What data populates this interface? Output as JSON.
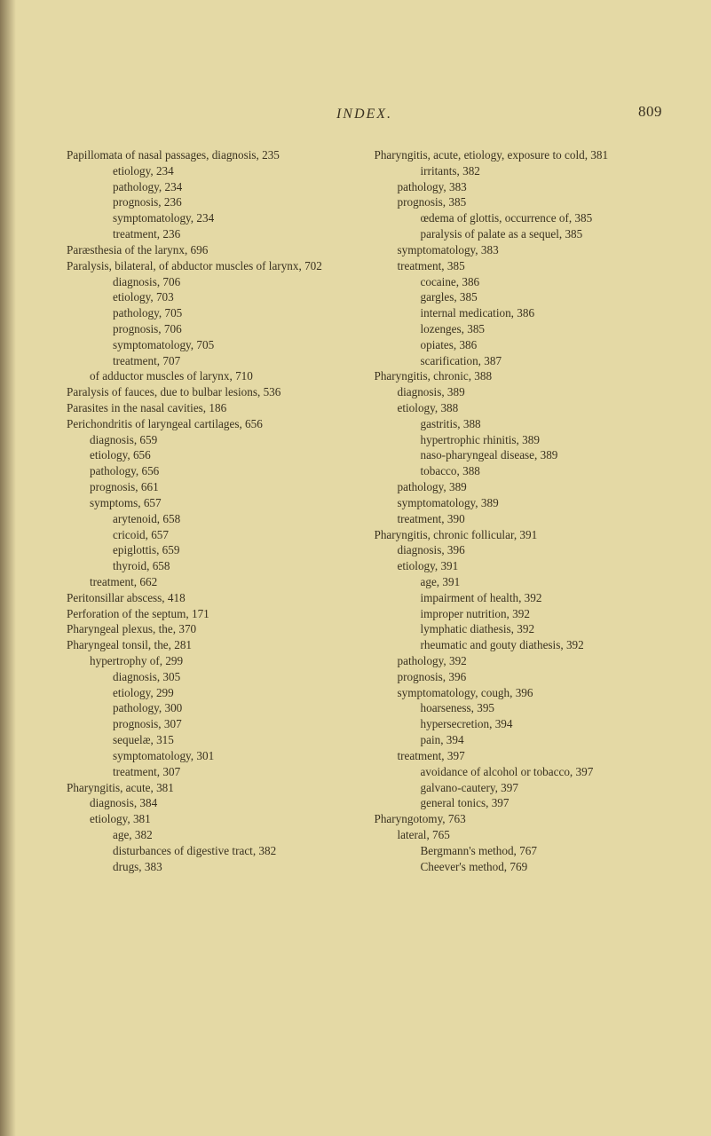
{
  "header": {
    "title": "INDEX.",
    "pageno": "809"
  },
  "colors": {
    "bg": "#e4d9a5",
    "text": "#3a3220"
  },
  "left": [
    {
      "i": 0,
      "t": "Papillomata of nasal passages, diagnosis, 235"
    },
    {
      "i": 2,
      "t": "etiology, 234"
    },
    {
      "i": 2,
      "t": "pathology, 234"
    },
    {
      "i": 2,
      "t": "prognosis, 236"
    },
    {
      "i": 2,
      "t": "symptomatology, 234"
    },
    {
      "i": 2,
      "t": "treatment, 236"
    },
    {
      "i": 0,
      "t": "Paræsthesia of the larynx, 696"
    },
    {
      "i": 0,
      "t": "Paralysis, bilateral, of abductor muscles of larynx, 702"
    },
    {
      "i": 2,
      "t": "diagnosis, 706"
    },
    {
      "i": 2,
      "t": "etiology, 703"
    },
    {
      "i": 2,
      "t": "pathology, 705"
    },
    {
      "i": 2,
      "t": "prognosis, 706"
    },
    {
      "i": 2,
      "t": "symptomatology, 705"
    },
    {
      "i": 2,
      "t": "treatment, 707"
    },
    {
      "i": 1,
      "t": "of adductor muscles of larynx, 710"
    },
    {
      "i": 0,
      "t": "Paralysis of fauces, due to bulbar lesions, 536"
    },
    {
      "i": 0,
      "t": "Parasites in the nasal cavities, 186"
    },
    {
      "i": 0,
      "t": "Perichondritis of laryngeal cartilages, 656"
    },
    {
      "i": 1,
      "t": "diagnosis, 659"
    },
    {
      "i": 1,
      "t": "etiology, 656"
    },
    {
      "i": 1,
      "t": "pathology, 656"
    },
    {
      "i": 1,
      "t": "prognosis, 661"
    },
    {
      "i": 1,
      "t": "symptoms, 657"
    },
    {
      "i": 2,
      "t": "arytenoid, 658"
    },
    {
      "i": 2,
      "t": "cricoid, 657"
    },
    {
      "i": 2,
      "t": "epiglottis, 659"
    },
    {
      "i": 2,
      "t": "thyroid, 658"
    },
    {
      "i": 1,
      "t": "treatment, 662"
    },
    {
      "i": 0,
      "t": "Peritonsillar abscess, 418"
    },
    {
      "i": 0,
      "t": "Perforation of the septum, 171"
    },
    {
      "i": 0,
      "t": "Pharyngeal plexus, the, 370"
    },
    {
      "i": 0,
      "t": "Pharyngeal tonsil, the, 281"
    },
    {
      "i": 1,
      "t": "hypertrophy of, 299"
    },
    {
      "i": 2,
      "t": "diagnosis, 305"
    },
    {
      "i": 2,
      "t": "etiology, 299"
    },
    {
      "i": 2,
      "t": "pathology, 300"
    },
    {
      "i": 2,
      "t": "prognosis, 307"
    },
    {
      "i": 2,
      "t": "sequelæ, 315"
    },
    {
      "i": 2,
      "t": "symptomatology, 301"
    },
    {
      "i": 2,
      "t": "treatment, 307"
    },
    {
      "i": 0,
      "t": "Pharyngitis, acute, 381"
    },
    {
      "i": 1,
      "t": "diagnosis, 384"
    },
    {
      "i": 1,
      "t": "etiology, 381"
    },
    {
      "i": 2,
      "t": "age, 382"
    },
    {
      "i": 2,
      "t": "disturbances of digestive tract, 382"
    },
    {
      "i": 2,
      "t": "drugs, 383"
    }
  ],
  "right": [
    {
      "i": 0,
      "t": "Pharyngitis, acute, etiology, exposure to cold, 381"
    },
    {
      "i": 2,
      "t": "irritants, 382"
    },
    {
      "i": 1,
      "t": "pathology, 383"
    },
    {
      "i": 1,
      "t": "prognosis, 385"
    },
    {
      "i": 2,
      "t": "œdema of glottis, occurrence of, 385"
    },
    {
      "i": 2,
      "t": "paralysis of palate as a sequel, 385"
    },
    {
      "i": 1,
      "t": "symptomatology, 383"
    },
    {
      "i": 1,
      "t": "treatment, 385"
    },
    {
      "i": 2,
      "t": "cocaine, 386"
    },
    {
      "i": 2,
      "t": "gargles, 385"
    },
    {
      "i": 2,
      "t": "internal medication, 386"
    },
    {
      "i": 2,
      "t": "lozenges, 385"
    },
    {
      "i": 2,
      "t": "opiates, 386"
    },
    {
      "i": 2,
      "t": "scarification, 387"
    },
    {
      "i": 0,
      "t": "Pharyngitis, chronic, 388"
    },
    {
      "i": 1,
      "t": "diagnosis, 389"
    },
    {
      "i": 1,
      "t": "etiology, 388"
    },
    {
      "i": 2,
      "t": "gastritis, 388"
    },
    {
      "i": 2,
      "t": "hypertrophic rhinitis, 389"
    },
    {
      "i": 2,
      "t": "naso-pharyngeal disease, 389"
    },
    {
      "i": 2,
      "t": "tobacco, 388"
    },
    {
      "i": 1,
      "t": "pathology, 389"
    },
    {
      "i": 1,
      "t": "symptomatology, 389"
    },
    {
      "i": 1,
      "t": "treatment, 390"
    },
    {
      "i": 0,
      "t": "Pharyngitis, chronic follicular, 391"
    },
    {
      "i": 1,
      "t": "diagnosis, 396"
    },
    {
      "i": 1,
      "t": "etiology, 391"
    },
    {
      "i": 2,
      "t": "age, 391"
    },
    {
      "i": 2,
      "t": "impairment of health, 392"
    },
    {
      "i": 2,
      "t": "improper nutrition, 392"
    },
    {
      "i": 2,
      "t": "lymphatic diathesis, 392"
    },
    {
      "i": 2,
      "t": "rheumatic and gouty diathesis, 392"
    },
    {
      "i": 1,
      "t": "pathology, 392"
    },
    {
      "i": 1,
      "t": "prognosis, 396"
    },
    {
      "i": 1,
      "t": "symptomatology, cough, 396"
    },
    {
      "i": 2,
      "t": "hoarseness, 395"
    },
    {
      "i": 2,
      "t": "hypersecretion, 394"
    },
    {
      "i": 2,
      "t": "pain, 394"
    },
    {
      "i": 1,
      "t": "treatment, 397"
    },
    {
      "i": 2,
      "t": "avoidance of alcohol or tobacco, 397"
    },
    {
      "i": 2,
      "t": "galvano-cautery, 397"
    },
    {
      "i": 2,
      "t": "general tonics, 397"
    },
    {
      "i": 0,
      "t": "Pharyngotomy, 763"
    },
    {
      "i": 1,
      "t": "lateral, 765"
    },
    {
      "i": 2,
      "t": "Bergmann's method, 767"
    },
    {
      "i": 2,
      "t": "Cheever's method, 769"
    }
  ]
}
